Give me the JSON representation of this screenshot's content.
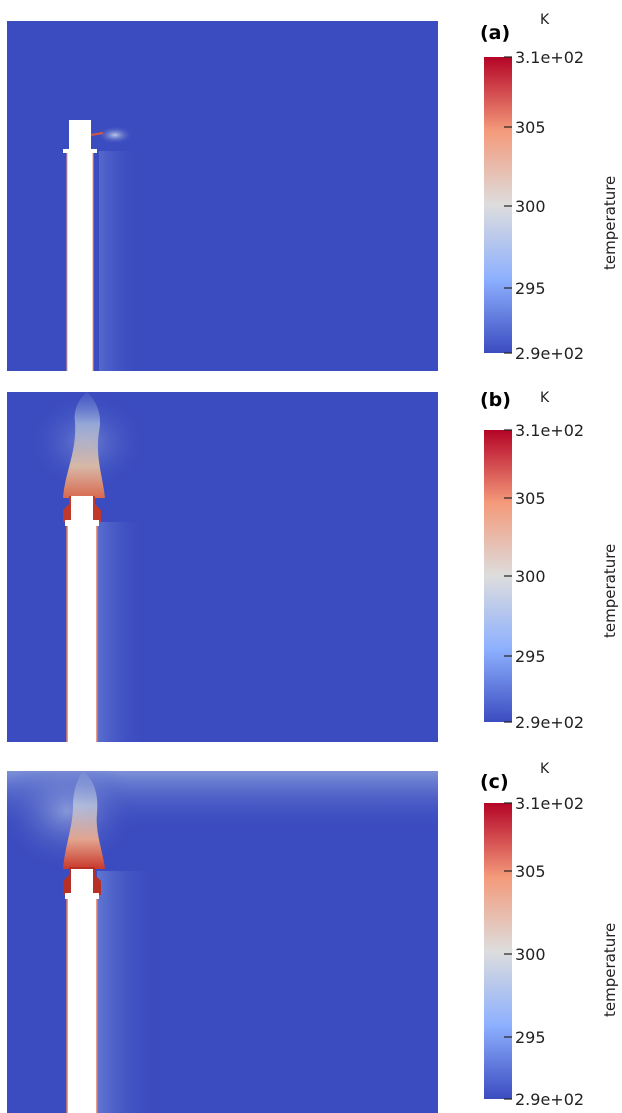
{
  "colors": {
    "background": "#3b4cc0",
    "cold": "#3b4cc0",
    "mid": "#dddddd",
    "hot": "#b40426",
    "solid": "#ffffff"
  },
  "chart_data": [
    {
      "type": "heatmap",
      "panel_label": "(a)",
      "colorbar": {
        "title": "temperature",
        "unit": "K",
        "range": [
          290,
          310
        ],
        "ticks": [
          295,
          300,
          305
        ],
        "tick_labels": [
          "295",
          "300",
          "305"
        ],
        "min_label": "2.9e+02",
        "max_label": "3.1e+02",
        "colormap": "cool-to-warm"
      },
      "plume_intensity": 0.2
    },
    {
      "type": "heatmap",
      "panel_label": "(b)",
      "colorbar": {
        "title": "temperature",
        "unit": "K",
        "range": [
          290,
          310
        ],
        "ticks": [
          295,
          300,
          305
        ],
        "tick_labels": [
          "295",
          "300",
          "305"
        ],
        "min_label": "2.9e+02",
        "max_label": "3.1e+02",
        "colormap": "cool-to-warm"
      },
      "plume_intensity": 0.6
    },
    {
      "type": "heatmap",
      "panel_label": "(c)",
      "colorbar": {
        "title": "temperature",
        "unit": "K",
        "range": [
          290,
          310
        ],
        "ticks": [
          295,
          300,
          305
        ],
        "tick_labels": [
          "295",
          "300",
          "305"
        ],
        "min_label": "2.9e+02",
        "max_label": "3.1e+02",
        "colormap": "cool-to-warm"
      },
      "plume_intensity": 1.0
    }
  ]
}
